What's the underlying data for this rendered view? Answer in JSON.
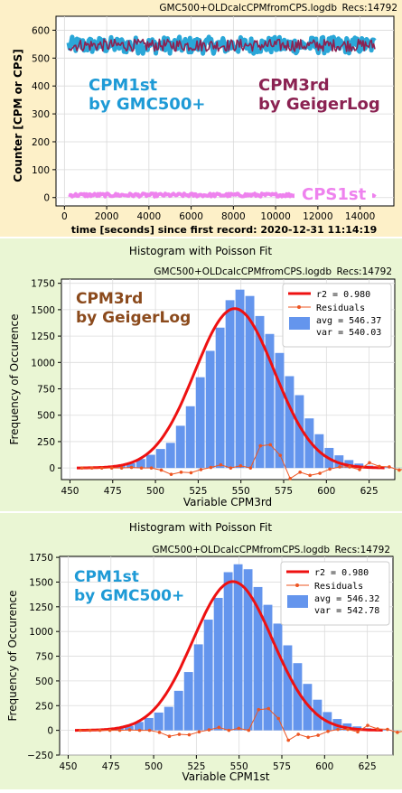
{
  "chart_data": [
    {
      "type": "line",
      "header": "GMC500+OLDcalcCPMfromCPS.logdb",
      "recs": "Recs:14792",
      "xlabel": "time [seconds] since first record: 2020-12-31 11:14:19",
      "ylabel": "Counter  [CPM or CPS]",
      "xlim": [
        -400,
        15600
      ],
      "ylim": [
        -30,
        650
      ],
      "xticks": [
        "0",
        "2000",
        "4000",
        "6000",
        "8000",
        "10000",
        "12000",
        "14000"
      ],
      "yticks": [
        "0",
        "100",
        "200",
        "300",
        "400",
        "500",
        "600"
      ],
      "grid": true,
      "annotations": [
        {
          "line1": "CPM1st",
          "line2": "by GMC500+",
          "color": "#1e9ad6"
        },
        {
          "line1": "CPM3rd",
          "line2": "by GeigerLog",
          "color": "#8b2252"
        },
        {
          "line1": "CPS1st",
          "color": "#ee82ee"
        }
      ],
      "series": [
        {
          "name": "CPM1st",
          "color": "#2aa7d8",
          "x_range": [
            200,
            14700
          ],
          "y_mean": 546,
          "y_spread": 30
        },
        {
          "name": "CPM3rd",
          "color": "#8b2252",
          "x_range": [
            200,
            14700
          ],
          "y_mean": 546,
          "y_spread": 22
        },
        {
          "name": "CPS1st",
          "color": "#ee82ee",
          "x_range": [
            200,
            14700
          ],
          "y_mean": 9,
          "y_spread": 6
        }
      ]
    },
    {
      "type": "bar",
      "figure_title": "Histogram with Poisson Fit",
      "header": "GMC500+OLDcalcCPMfromCPS.logdb",
      "recs": "Recs:14792",
      "xlabel": "Variable CPM3rd",
      "ylabel": "Frequency of Occurence",
      "xlim": [
        445,
        640
      ],
      "ylim": [
        -110,
        1790
      ],
      "xticks": [
        "450",
        "475",
        "500",
        "525",
        "550",
        "575",
        "600",
        "625"
      ],
      "yticks": [
        "0",
        "250",
        "500",
        "750",
        "1000",
        "1250",
        "1500",
        "1750"
      ],
      "grid": true,
      "annotation": {
        "line1": "CPM3rd",
        "line2": "by GeigerLog",
        "color": "#8b4a1c"
      },
      "legend": {
        "position": "top-right",
        "r2": "r2  = 0.980",
        "residuals": "Residuals",
        "avg": "avg = 546.37",
        "var": "var = 540.03"
      },
      "bars": {
        "color": "#6495ed",
        "start": 454,
        "width": 5.8,
        "values": [
          2,
          4,
          8,
          12,
          25,
          45,
          85,
          125,
          180,
          238,
          400,
          585,
          860,
          1110,
          1330,
          1590,
          1690,
          1630,
          1440,
          1270,
          1090,
          870,
          690,
          470,
          320,
          190,
          120,
          75,
          42,
          22,
          12,
          6,
          3
        ]
      },
      "fit": {
        "color": "#ee1111",
        "mean": 546.37,
        "var": 540.03,
        "amp": 1510
      },
      "residuals": {
        "color": "#ee5522",
        "start": 457,
        "step": 5.8,
        "values": [
          0,
          0,
          0,
          0,
          0,
          5,
          0,
          0,
          -20,
          -60,
          -40,
          -45,
          -15,
          5,
          30,
          0,
          20,
          0,
          210,
          220,
          120,
          -100,
          -40,
          -70,
          -50,
          -10,
          10,
          10,
          -15,
          50,
          15,
          10,
          -20,
          0,
          0,
          0
        ]
      }
    },
    {
      "type": "bar",
      "figure_title": "Histogram with Poisson Fit",
      "header": "GMC500+OLDcalcCPMfromCPS.logdb",
      "recs": "Recs:14792",
      "xlabel": "Variable CPM1st",
      "ylabel": "Frequency of Occurence",
      "xlim": [
        445,
        640
      ],
      "ylim": [
        -250,
        1760
      ],
      "xticks": [
        "450",
        "475",
        "500",
        "525",
        "550",
        "575",
        "600",
        "625"
      ],
      "yticks": [
        "−250",
        "0",
        "250",
        "500",
        "750",
        "1000",
        "1250",
        "1500",
        "1750"
      ],
      "grid": true,
      "annotation": {
        "line1": "CPM1st",
        "line2": "by GMC500+",
        "color": "#1e9ad6"
      },
      "legend": {
        "position": "top-right",
        "r2": "r2  = 0.980",
        "residuals": "Residuals",
        "avg": "avg = 546.32",
        "var": "var = 542.78"
      },
      "bars": {
        "color": "#6495ed",
        "start": 454,
        "width": 5.8,
        "values": [
          2,
          4,
          8,
          12,
          25,
          45,
          85,
          125,
          180,
          238,
          400,
          590,
          870,
          1120,
          1340,
          1600,
          1680,
          1630,
          1450,
          1270,
          1080,
          860,
          680,
          470,
          310,
          185,
          115,
          70,
          40,
          22,
          12,
          6,
          3
        ]
      },
      "fit": {
        "color": "#ee1111",
        "mean": 546.32,
        "var": 542.78,
        "amp": 1505
      },
      "residuals": {
        "color": "#ee5522",
        "start": 457,
        "step": 5.8,
        "values": [
          0,
          0,
          0,
          0,
          0,
          5,
          0,
          0,
          -20,
          -60,
          -40,
          -45,
          -15,
          5,
          30,
          0,
          20,
          0,
          210,
          220,
          120,
          -100,
          -40,
          -70,
          -50,
          -10,
          10,
          10,
          -15,
          50,
          15,
          10,
          -20,
          0,
          0,
          0
        ]
      }
    }
  ]
}
